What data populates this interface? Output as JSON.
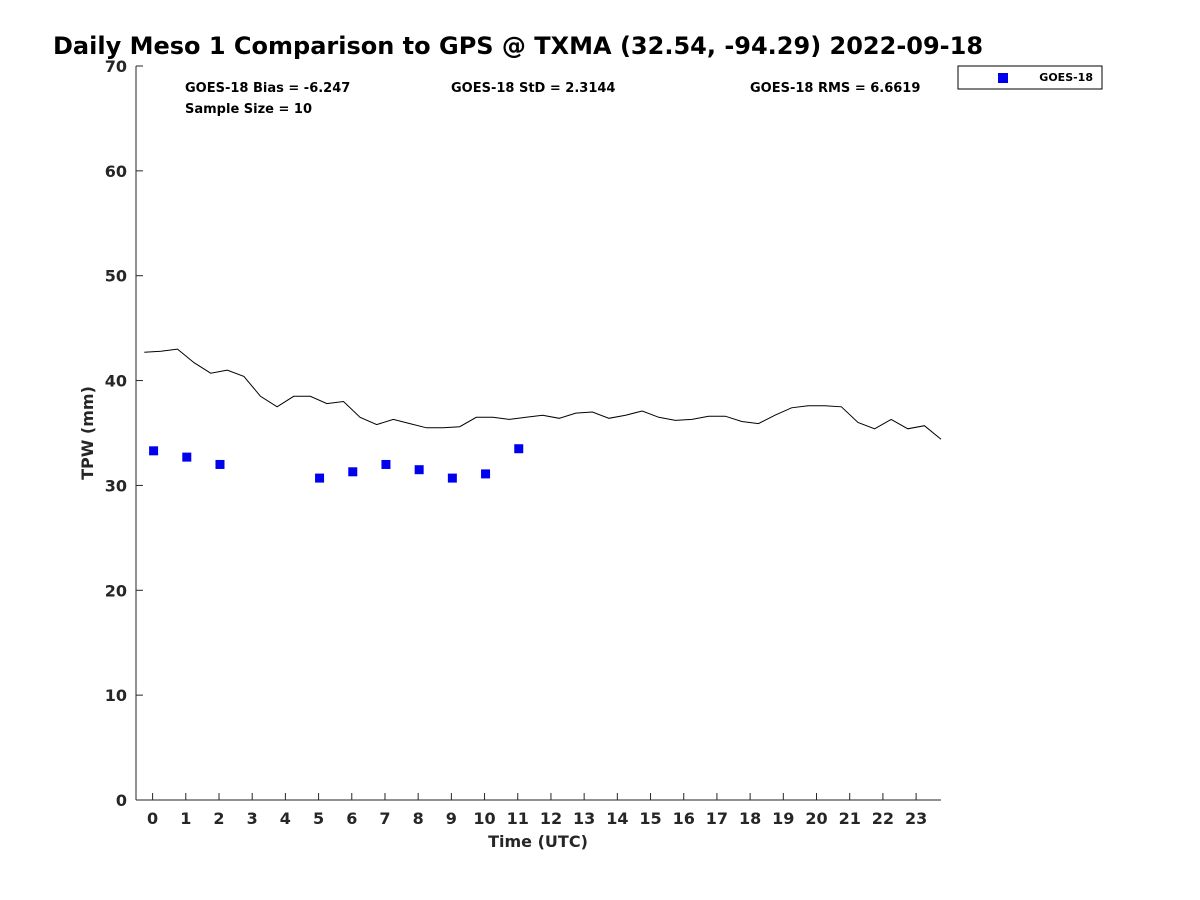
{
  "chart_data": {
    "type": "scatter",
    "title": "Daily Meso 1 Comparison to GPS @ TXMA (32.54, -94.29) 2022-09-18",
    "xlabel": "Time (UTC)",
    "ylabel": "TPW (mm)",
    "xlim": [
      -0.5,
      23.75
    ],
    "ylim": [
      0,
      70
    ],
    "x_ticks": [
      0,
      1,
      2,
      3,
      4,
      5,
      6,
      7,
      8,
      9,
      10,
      11,
      12,
      13,
      14,
      15,
      16,
      17,
      18,
      19,
      20,
      21,
      22,
      23
    ],
    "y_ticks": [
      0,
      10,
      20,
      30,
      40,
      50,
      60,
      70
    ],
    "grid": false,
    "legend_position": "outside-top-right",
    "stats": {
      "bias": "GOES-18 Bias = -6.247",
      "std": "GOES-18 StD = 2.3144",
      "rms": "GOES-18 RMS = 6.6619",
      "sample": "Sample Size = 10"
    },
    "series": [
      {
        "name": "GOES-18",
        "style": "markers",
        "color": "#0000ee",
        "marker": "square",
        "x": [
          0.03,
          1.03,
          2.03,
          5.03,
          6.03,
          7.03,
          8.03,
          9.03,
          10.03,
          11.03
        ],
        "y": [
          33.3,
          32.7,
          32.0,
          30.7,
          31.3,
          32.0,
          31.5,
          30.7,
          31.1,
          33.5
        ]
      },
      {
        "style": "line",
        "color": "#000000",
        "x": [
          -0.25,
          0.25,
          0.75,
          1.25,
          1.75,
          2.25,
          2.75,
          3.25,
          3.75,
          4.25,
          4.75,
          5.25,
          5.75,
          6.25,
          6.75,
          7.25,
          7.75,
          8.25,
          8.75,
          9.25,
          9.75,
          10.25,
          10.75,
          11.25,
          11.75,
          12.25,
          12.75,
          13.25,
          13.75,
          14.25,
          14.75,
          15.25,
          15.75,
          16.25,
          16.75,
          17.25,
          17.75,
          18.25,
          18.75,
          19.25,
          19.75,
          20.25,
          20.75,
          21.25,
          21.75,
          22.25,
          22.75,
          23.25,
          23.75
        ],
        "y": [
          42.7,
          42.8,
          43.0,
          41.7,
          40.7,
          41.0,
          40.4,
          38.5,
          37.5,
          38.5,
          38.5,
          37.8,
          38.0,
          36.5,
          35.8,
          36.3,
          35.9,
          35.5,
          35.5,
          35.6,
          36.5,
          36.5,
          36.3,
          36.5,
          36.7,
          36.4,
          36.9,
          37.0,
          36.4,
          36.7,
          37.1,
          36.5,
          36.2,
          36.3,
          36.6,
          36.6,
          36.1,
          35.9,
          36.7,
          37.4,
          37.6,
          37.6,
          37.5,
          36.0,
          35.4,
          36.3,
          35.4,
          35.7,
          34.4
        ]
      }
    ]
  }
}
